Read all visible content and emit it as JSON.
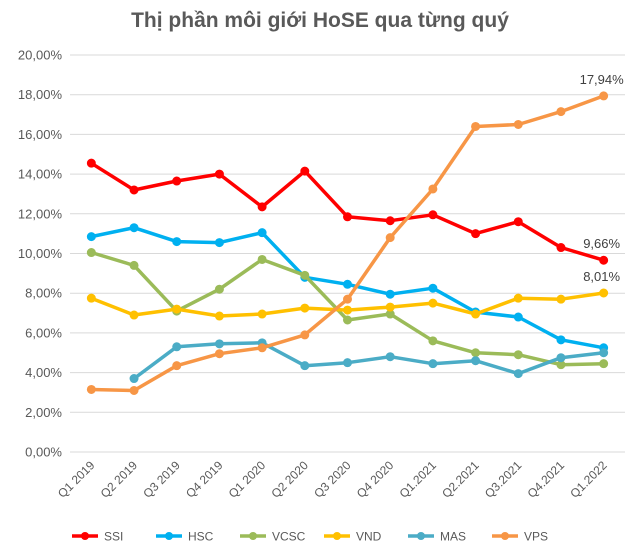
{
  "chart_data": {
    "type": "line",
    "title": "Thị phần môi giới HoSE qua từng quý",
    "xlabel": "",
    "ylabel": "",
    "ylim": [
      0,
      20
    ],
    "y_tick_labels": [
      "0,00%",
      "2,00%",
      "4,00%",
      "6,00%",
      "8,00%",
      "10,00%",
      "12,00%",
      "14,00%",
      "16,00%",
      "18,00%",
      "20,00%"
    ],
    "categories": [
      "Q1 2019",
      "Q2 2019",
      "Q3 2019",
      "Q4 2019",
      "Q1 2020",
      "Q2 2020",
      "Q3 2020",
      "Q4 2020",
      "Q1.2021",
      "Q2.2021",
      "Q3.2021",
      "Q4.2021",
      "Q1.2022"
    ],
    "grid": true,
    "legend_position": "bottom",
    "series": [
      {
        "name": "SSI",
        "color": "#ff0000",
        "values": [
          14.55,
          13.2,
          13.65,
          14.0,
          12.35,
          14.15,
          11.85,
          11.65,
          11.95,
          11.0,
          11.6,
          10.3,
          9.66
        ]
      },
      {
        "name": "HSC",
        "color": "#00b0f0",
        "values": [
          10.85,
          11.3,
          10.6,
          10.55,
          11.05,
          8.8,
          8.45,
          7.95,
          8.25,
          7.05,
          6.8,
          5.65,
          5.25
        ]
      },
      {
        "name": "VCSC",
        "color": "#9bbb59",
        "values": [
          10.05,
          9.4,
          7.1,
          8.2,
          9.7,
          8.9,
          6.65,
          6.95,
          5.6,
          5.0,
          4.9,
          4.4,
          4.45
        ]
      },
      {
        "name": "VND",
        "color": "#ffc000",
        "values": [
          7.75,
          6.9,
          7.2,
          6.85,
          6.95,
          7.25,
          7.15,
          7.3,
          7.5,
          6.95,
          7.75,
          7.7,
          8.01
        ]
      },
      {
        "name": "MAS",
        "color": "#4bacc6",
        "values": [
          null,
          3.7,
          5.3,
          5.45,
          5.5,
          4.35,
          4.5,
          4.8,
          4.45,
          4.6,
          3.95,
          4.75,
          5.0
        ]
      },
      {
        "name": "VPS",
        "color": "#f79646",
        "values": [
          3.15,
          3.1,
          4.35,
          4.95,
          5.25,
          5.9,
          7.7,
          10.8,
          13.25,
          16.4,
          16.5,
          17.15,
          17.94
        ]
      }
    ],
    "annotations": [
      {
        "series": "VPS",
        "index": 12,
        "text": "17,94%"
      },
      {
        "series": "SSI",
        "index": 12,
        "text": "9,66%"
      },
      {
        "series": "VND",
        "index": 12,
        "text": "8,01%"
      }
    ]
  }
}
